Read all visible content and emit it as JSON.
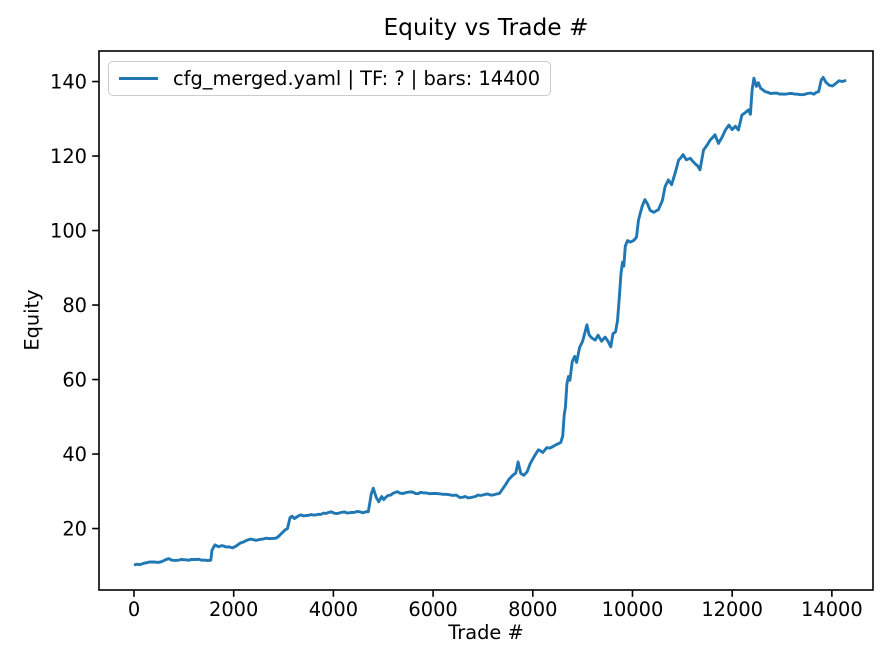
{
  "title": "Equity vs Trade #",
  "axes": {
    "xlabel": "Trade #",
    "ylabel": "Equity"
  },
  "legend": {
    "label": "cfg_merged.yaml | TF: ? | bars: 14400",
    "line_color": "#1f77b4"
  },
  "colors": {
    "line": "#1f77b4",
    "spine": "#000000",
    "legend_border": "#cccccc",
    "background": "#ffffff",
    "text": "#000000"
  },
  "chart_data": {
    "type": "line",
    "title": "Equity vs Trade #",
    "xlabel": "Trade #",
    "ylabel": "Equity",
    "x_ticks": [
      0,
      2000,
      4000,
      6000,
      8000,
      10000,
      12000,
      14000
    ],
    "y_ticks": [
      20,
      40,
      60,
      80,
      100,
      120,
      140
    ],
    "xlim": [
      -702,
      14825
    ],
    "ylim": [
      3.5,
      148.2
    ],
    "grid": false,
    "legend_position": "upper left",
    "series": [
      {
        "name": "cfg_merged.yaml | TF: ? | bars: 14400",
        "color": "#1f77b4",
        "points": [
          [
            0,
            10.2
          ],
          [
            120,
            10.3
          ],
          [
            200,
            10.7
          ],
          [
            300,
            11.0
          ],
          [
            420,
            11.0
          ],
          [
            550,
            11.1
          ],
          [
            700,
            11.9
          ],
          [
            760,
            11.5
          ],
          [
            900,
            11.5
          ],
          [
            1050,
            11.6
          ],
          [
            1200,
            11.7
          ],
          [
            1350,
            11.5
          ],
          [
            1480,
            11.4
          ],
          [
            1540,
            11.5
          ],
          [
            1565,
            14.2
          ],
          [
            1625,
            15.6
          ],
          [
            1700,
            15.1
          ],
          [
            1800,
            15.3
          ],
          [
            1900,
            15.1
          ],
          [
            1980,
            14.8
          ],
          [
            2060,
            15.4
          ],
          [
            2130,
            16.1
          ],
          [
            2200,
            16.4
          ],
          [
            2270,
            16.9
          ],
          [
            2400,
            17.0
          ],
          [
            2550,
            17.1
          ],
          [
            2700,
            17.3
          ],
          [
            2850,
            17.4
          ],
          [
            2960,
            18.7
          ],
          [
            3030,
            19.6
          ],
          [
            3080,
            20.0
          ],
          [
            3130,
            22.9
          ],
          [
            3170,
            23.3
          ],
          [
            3220,
            22.7
          ],
          [
            3300,
            23.4
          ],
          [
            3450,
            23.5
          ],
          [
            3600,
            23.6
          ],
          [
            3750,
            23.8
          ],
          [
            3900,
            24.3
          ],
          [
            3960,
            24.5
          ],
          [
            4020,
            24.1
          ],
          [
            4150,
            24.3
          ],
          [
            4350,
            24.3
          ],
          [
            4550,
            24.4
          ],
          [
            4700,
            24.5
          ],
          [
            4760,
            29.3
          ],
          [
            4800,
            30.8
          ],
          [
            4860,
            28.3
          ],
          [
            4910,
            27.2
          ],
          [
            4970,
            28.6
          ],
          [
            5010,
            27.8
          ],
          [
            5100,
            28.9
          ],
          [
            5200,
            29.5
          ],
          [
            5280,
            29.9
          ],
          [
            5400,
            29.4
          ],
          [
            5520,
            29.8
          ],
          [
            5650,
            29.4
          ],
          [
            5800,
            29.6
          ],
          [
            6000,
            29.4
          ],
          [
            6200,
            29.2
          ],
          [
            6400,
            28.9
          ],
          [
            6600,
            28.4
          ],
          [
            6750,
            28.3
          ],
          [
            6900,
            29.0
          ],
          [
            7050,
            29.2
          ],
          [
            7200,
            29.0
          ],
          [
            7330,
            29.4
          ],
          [
            7440,
            31.5
          ],
          [
            7520,
            33.2
          ],
          [
            7600,
            34.3
          ],
          [
            7660,
            34.9
          ],
          [
            7705,
            37.9
          ],
          [
            7760,
            34.8
          ],
          [
            7820,
            34.3
          ],
          [
            7885,
            35.2
          ],
          [
            7950,
            37.5
          ],
          [
            8030,
            39.4
          ],
          [
            8110,
            41.1
          ],
          [
            8200,
            40.4
          ],
          [
            8280,
            41.7
          ],
          [
            8390,
            41.9
          ],
          [
            8480,
            42.6
          ],
          [
            8560,
            43.1
          ],
          [
            8600,
            44.8
          ],
          [
            8630,
            50.5
          ],
          [
            8655,
            52.5
          ],
          [
            8685,
            58.8
          ],
          [
            8715,
            60.8
          ],
          [
            8745,
            59.8
          ],
          [
            8790,
            64.8
          ],
          [
            8840,
            66.2
          ],
          [
            8880,
            64.6
          ],
          [
            8940,
            68.6
          ],
          [
            9000,
            70.3
          ],
          [
            9050,
            72.8
          ],
          [
            9085,
            74.7
          ],
          [
            9130,
            72.0
          ],
          [
            9180,
            71.2
          ],
          [
            9250,
            70.6
          ],
          [
            9310,
            71.9
          ],
          [
            9380,
            70.3
          ],
          [
            9450,
            71.4
          ],
          [
            9510,
            70.2
          ],
          [
            9565,
            68.8
          ],
          [
            9610,
            72.3
          ],
          [
            9660,
            72.8
          ],
          [
            9700,
            75.8
          ],
          [
            9735,
            82.0
          ],
          [
            9770,
            88.5
          ],
          [
            9800,
            91.5
          ],
          [
            9825,
            90.4
          ],
          [
            9855,
            95.8
          ],
          [
            9900,
            97.3
          ],
          [
            9960,
            96.9
          ],
          [
            10030,
            97.4
          ],
          [
            10080,
            98.2
          ],
          [
            10120,
            102.8
          ],
          [
            10190,
            106.4
          ],
          [
            10250,
            108.3
          ],
          [
            10300,
            107.2
          ],
          [
            10355,
            105.4
          ],
          [
            10430,
            104.9
          ],
          [
            10520,
            105.6
          ],
          [
            10600,
            108.1
          ],
          [
            10655,
            111.8
          ],
          [
            10720,
            113.6
          ],
          [
            10785,
            112.3
          ],
          [
            10855,
            115.4
          ],
          [
            10925,
            118.9
          ],
          [
            11015,
            120.4
          ],
          [
            11080,
            119.0
          ],
          [
            11160,
            119.4
          ],
          [
            11260,
            117.9
          ],
          [
            11355,
            116.3
          ],
          [
            11425,
            121.6
          ],
          [
            11500,
            123.0
          ],
          [
            11560,
            124.3
          ],
          [
            11655,
            125.7
          ],
          [
            11725,
            123.4
          ],
          [
            11795,
            125.0
          ],
          [
            11865,
            127.0
          ],
          [
            11935,
            128.3
          ],
          [
            12000,
            127.1
          ],
          [
            12065,
            128.0
          ],
          [
            12125,
            127.0
          ],
          [
            12195,
            131.0
          ],
          [
            12260,
            131.6
          ],
          [
            12325,
            132.4
          ],
          [
            12365,
            131.2
          ],
          [
            12400,
            137.7
          ],
          [
            12435,
            140.9
          ],
          [
            12485,
            138.7
          ],
          [
            12525,
            139.7
          ],
          [
            12570,
            138.2
          ],
          [
            12660,
            137.3
          ],
          [
            12770,
            136.8
          ],
          [
            12900,
            136.9
          ],
          [
            13050,
            136.6
          ],
          [
            13200,
            136.8
          ],
          [
            13360,
            136.5
          ],
          [
            13510,
            136.8
          ],
          [
            13640,
            136.6
          ],
          [
            13735,
            137.3
          ],
          [
            13785,
            140.4
          ],
          [
            13825,
            141.1
          ],
          [
            13880,
            139.8
          ],
          [
            13950,
            139.0
          ],
          [
            14010,
            138.8
          ],
          [
            14070,
            139.4
          ],
          [
            14140,
            140.2
          ],
          [
            14210,
            140.0
          ],
          [
            14285,
            140.3
          ]
        ]
      }
    ]
  }
}
